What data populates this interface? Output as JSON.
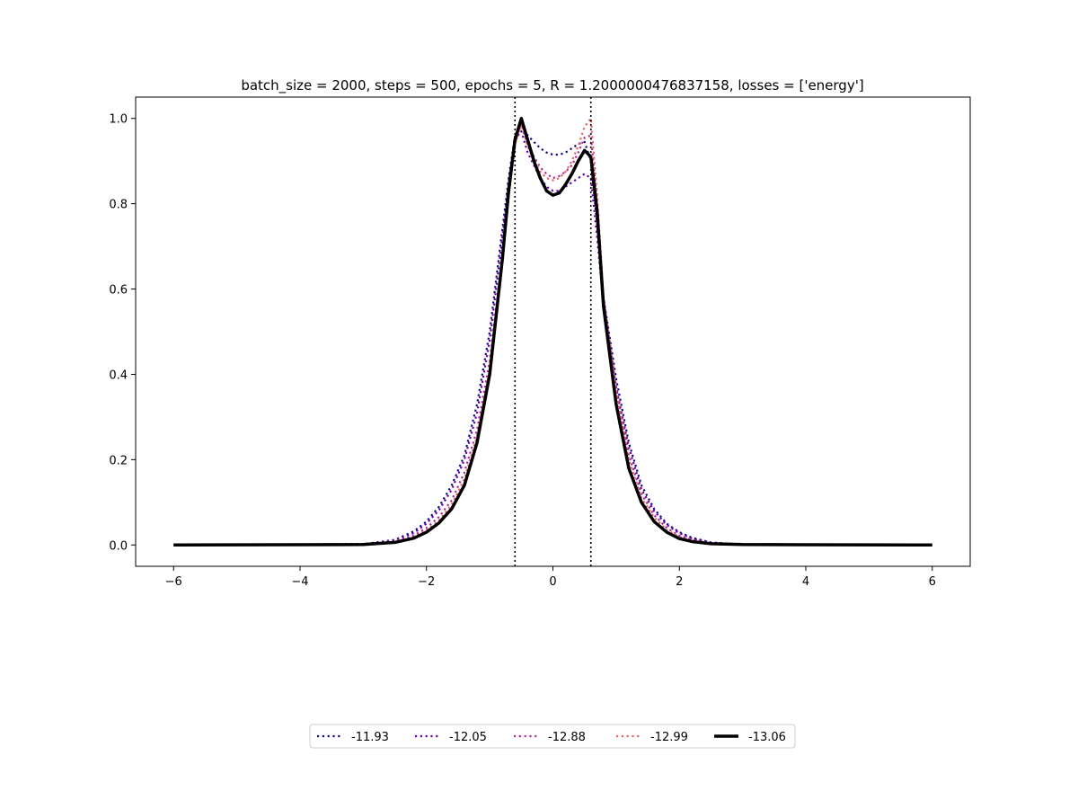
{
  "chart_data": {
    "type": "line",
    "title": "batch_size = 2000, steps = 500, epochs = 5, R = 1.2000000476837158, losses = ['energy']",
    "xlabel": "",
    "ylabel": "",
    "xlim": [
      -6.6,
      6.6
    ],
    "ylim": [
      -0.05,
      1.05
    ],
    "xticks": [
      -6,
      -4,
      -2,
      0,
      2,
      4,
      6
    ],
    "yticks": [
      0.0,
      0.2,
      0.4,
      0.6,
      0.8,
      1.0
    ],
    "xtick_labels": [
      "−6",
      "−4",
      "−2",
      "0",
      "2",
      "4",
      "6"
    ],
    "ytick_labels": [
      "0.0",
      "0.2",
      "0.4",
      "0.6",
      "0.8",
      "1.0"
    ],
    "grid": false,
    "legend_position": "bottom-center",
    "vlines": [
      -0.6,
      0.6
    ],
    "x": [
      -6.0,
      -3.0,
      -2.5,
      -2.2,
      -2.0,
      -1.8,
      -1.6,
      -1.4,
      -1.2,
      -1.0,
      -0.8,
      -0.7,
      -0.6,
      -0.5,
      -0.4,
      -0.3,
      -0.2,
      -0.1,
      0.0,
      0.1,
      0.2,
      0.3,
      0.4,
      0.5,
      0.6,
      0.7,
      0.8,
      1.0,
      1.2,
      1.4,
      1.6,
      1.8,
      2.0,
      2.2,
      2.5,
      3.0,
      6.0
    ],
    "series": [
      {
        "name": "-11.93",
        "color": "#0d0887",
        "style": "dotted",
        "values": [
          0,
          0.002,
          0.012,
          0.032,
          0.055,
          0.09,
          0.14,
          0.21,
          0.33,
          0.5,
          0.74,
          0.86,
          0.96,
          0.985,
          0.96,
          0.945,
          0.93,
          0.92,
          0.915,
          0.915,
          0.92,
          0.93,
          0.94,
          0.945,
          0.9,
          0.75,
          0.58,
          0.39,
          0.24,
          0.14,
          0.085,
          0.05,
          0.03,
          0.017,
          0.006,
          0.001,
          0
        ]
      },
      {
        "name": "-12.05",
        "color": "#6a00a8",
        "style": "dotted",
        "values": [
          0,
          0.002,
          0.011,
          0.028,
          0.05,
          0.082,
          0.13,
          0.2,
          0.31,
          0.48,
          0.72,
          0.85,
          0.95,
          0.97,
          0.92,
          0.89,
          0.86,
          0.84,
          0.83,
          0.83,
          0.84,
          0.85,
          0.86,
          0.87,
          0.86,
          0.72,
          0.56,
          0.37,
          0.23,
          0.13,
          0.08,
          0.047,
          0.028,
          0.015,
          0.005,
          0.001,
          0
        ]
      },
      {
        "name": "-12.88",
        "color": "#b12a90",
        "style": "dotted",
        "values": [
          0,
          0.001,
          0.008,
          0.022,
          0.04,
          0.066,
          0.105,
          0.17,
          0.27,
          0.43,
          0.68,
          0.82,
          0.94,
          0.99,
          0.94,
          0.91,
          0.885,
          0.87,
          0.86,
          0.865,
          0.875,
          0.89,
          0.92,
          0.955,
          0.96,
          0.8,
          0.58,
          0.37,
          0.21,
          0.12,
          0.07,
          0.04,
          0.022,
          0.012,
          0.004,
          0.001,
          0
        ]
      },
      {
        "name": "-12.99",
        "color": "#e16462",
        "style": "dotted",
        "values": [
          0,
          0.001,
          0.007,
          0.018,
          0.034,
          0.058,
          0.095,
          0.155,
          0.255,
          0.41,
          0.67,
          0.82,
          0.94,
          0.985,
          0.935,
          0.9,
          0.875,
          0.86,
          0.855,
          0.86,
          0.875,
          0.9,
          0.935,
          0.98,
          1.0,
          0.82,
          0.58,
          0.36,
          0.2,
          0.11,
          0.065,
          0.035,
          0.019,
          0.01,
          0.003,
          0.001,
          0
        ]
      },
      {
        "name": "-13.06",
        "color": "#000000",
        "style": "solid",
        "values": [
          0,
          0.001,
          0.006,
          0.016,
          0.03,
          0.052,
          0.085,
          0.14,
          0.24,
          0.4,
          0.67,
          0.83,
          0.95,
          1.0,
          0.95,
          0.9,
          0.86,
          0.83,
          0.82,
          0.825,
          0.845,
          0.87,
          0.9,
          0.925,
          0.91,
          0.78,
          0.56,
          0.33,
          0.18,
          0.1,
          0.055,
          0.03,
          0.015,
          0.008,
          0.003,
          0.001,
          0
        ]
      }
    ]
  }
}
